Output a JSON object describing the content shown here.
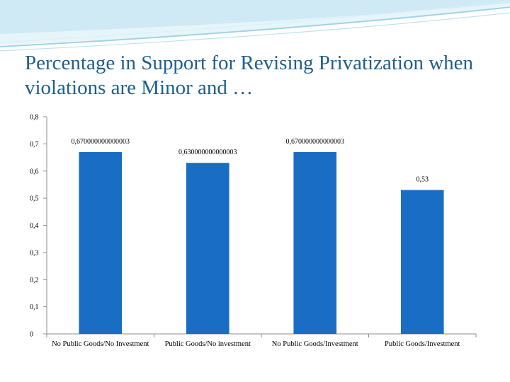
{
  "slide": {
    "title": "Percentage in Support for Revising Privatization when violations are Minor and …"
  },
  "colors": {
    "bar": "#1a6dc4",
    "title": "#1f5f8b",
    "header_light": "#cfeaf4",
    "header_mid": "#9fd3e8"
  },
  "chart_data": {
    "type": "bar",
    "title": "Percentage in Support for Revising Privatization when violations are Minor and …",
    "categories": [
      "No Public Goods/No Investment",
      "Public Goods/No investment",
      "No Public Goods/Investment",
      "Public Goods/Investment"
    ],
    "values": [
      0.67,
      0.63,
      0.67,
      0.53
    ],
    "data_labels": [
      "0,670000000000003",
      "0,630000000000003",
      "0,670000000000003",
      "0,53"
    ],
    "ylim": [
      0,
      0.8
    ],
    "yticks": [
      0,
      0.1,
      0.2,
      0.3,
      0.4,
      0.5,
      0.6,
      0.7,
      0.8
    ],
    "ytick_labels": [
      "0",
      "0,1",
      "0,2",
      "0,3",
      "0,4",
      "0,5",
      "0,6",
      "0,7",
      "0,8"
    ],
    "xlabel": "",
    "ylabel": "",
    "grid": false,
    "legend": "none"
  }
}
